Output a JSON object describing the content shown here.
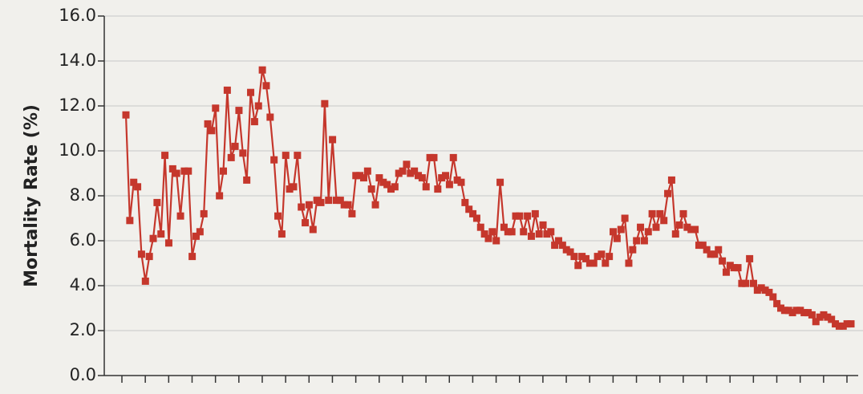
{
  "chart_data": {
    "type": "line",
    "y_label": "Mortality Rate (%)",
    "ylim": [
      0,
      16
    ],
    "yticks": [
      {
        "value": 0,
        "label": "0.0"
      },
      {
        "value": 2,
        "label": "2.0"
      },
      {
        "value": 4,
        "label": "4.0"
      },
      {
        "value": 6,
        "label": "6.0"
      },
      {
        "value": 8,
        "label": "8.0"
      },
      {
        "value": 10,
        "label": "10.0"
      },
      {
        "value": 12,
        "label": "12.0"
      },
      {
        "value": 14,
        "label": "14.0"
      },
      {
        "value": 16,
        "label": "16.0"
      }
    ],
    "grid": true,
    "color": "#c5372c",
    "categories": [
      null,
      null,
      null,
      null,
      null,
      null,
      null,
      null,
      null,
      null,
      null,
      null,
      null,
      null,
      null,
      null,
      null,
      null,
      null,
      null,
      null,
      null,
      null,
      null,
      null,
      null,
      null,
      null,
      null,
      null,
      null,
      null,
      null,
      null,
      null,
      null,
      null,
      null,
      null,
      null,
      null,
      null,
      null,
      null,
      null,
      null,
      null,
      null,
      null,
      null,
      null,
      null,
      null,
      null,
      null,
      null,
      null,
      null,
      null,
      null,
      null,
      null,
      null,
      null,
      null,
      null,
      null,
      null,
      null,
      null,
      null,
      null,
      null,
      null,
      null,
      null,
      null,
      null,
      null,
      null,
      null,
      null,
      null,
      null,
      null,
      null,
      null,
      null,
      null,
      null,
      null,
      null,
      null,
      null,
      null,
      null,
      null,
      null,
      null,
      null,
      null,
      null,
      null,
      null,
      null,
      null,
      null,
      null,
      null,
      null,
      null,
      null,
      null,
      null,
      null,
      null,
      null,
      null,
      null,
      null,
      null,
      null,
      null,
      null,
      null,
      null,
      null,
      null,
      null,
      null,
      null,
      null,
      null,
      null,
      null,
      null,
      null,
      null,
      null,
      null,
      null,
      null,
      null,
      null,
      null,
      null,
      null,
      null,
      null,
      null,
      null,
      null,
      null,
      null,
      null,
      null,
      null,
      null,
      null,
      null,
      null,
      null,
      null,
      null,
      null,
      null,
      null,
      null,
      null,
      null,
      null,
      null,
      null,
      null,
      null,
      null,
      null,
      null,
      null,
      null,
      null,
      null,
      null,
      null,
      null,
      null,
      null
    ],
    "values": [
      11.6,
      6.9,
      8.6,
      8.4,
      5.4,
      4.2,
      5.3,
      6.1,
      7.7,
      6.3,
      9.8,
      5.9,
      9.2,
      9.0,
      7.1,
      9.1,
      9.1,
      5.3,
      6.2,
      6.4,
      7.2,
      11.2,
      10.9,
      11.9,
      8.0,
      9.1,
      12.7,
      9.7,
      10.2,
      11.8,
      9.9,
      8.7,
      12.6,
      11.3,
      12.0,
      13.6,
      12.9,
      11.5,
      9.6,
      7.1,
      6.3,
      9.8,
      8.3,
      8.4,
      9.8,
      7.5,
      6.8,
      7.6,
      6.5,
      7.8,
      7.7,
      12.1,
      7.8,
      10.5,
      7.8,
      7.8,
      7.6,
      7.6,
      7.2,
      8.9,
      8.9,
      8.8,
      9.1,
      8.3,
      7.6,
      8.8,
      8.6,
      8.5,
      8.3,
      8.4,
      9.0,
      9.1,
      9.4,
      9.0,
      9.1,
      8.9,
      8.8,
      8.4,
      9.7,
      9.7,
      8.3,
      8.8,
      8.9,
      8.5,
      9.7,
      8.7,
      8.6,
      7.7,
      7.4,
      7.2,
      7.0,
      6.6,
      6.3,
      6.1,
      6.4,
      6.0,
      8.6,
      6.6,
      6.4,
      6.4,
      7.1,
      7.1,
      6.4,
      7.1,
      6.2,
      7.2,
      6.3,
      6.7,
      6.3,
      6.4,
      5.8,
      6.0,
      5.8,
      5.6,
      5.5,
      5.3,
      4.9,
      5.3,
      5.2,
      5.0,
      5.0,
      5.3,
      5.4,
      5.0,
      5.3,
      6.4,
      6.1,
      6.5,
      7.0,
      5.0,
      5.6,
      6.0,
      6.6,
      6.0,
      6.4,
      7.2,
      6.6,
      7.2,
      6.9,
      8.1,
      8.7,
      6.3,
      6.7,
      7.2,
      6.6,
      6.5,
      6.5,
      5.8,
      5.8,
      5.6,
      5.4,
      5.4,
      5.6,
      5.1,
      4.6,
      4.9,
      4.8,
      4.8,
      4.1,
      4.1,
      5.2,
      4.1,
      3.8,
      3.9,
      3.8,
      3.7,
      3.5,
      3.2,
      3.0,
      2.9,
      2.9,
      2.8,
      2.9,
      2.9,
      2.8,
      2.8,
      2.7,
      2.4,
      2.6,
      2.7,
      2.6,
      2.5,
      2.3,
      2.2,
      2.2,
      2.3,
      2.3
    ]
  }
}
